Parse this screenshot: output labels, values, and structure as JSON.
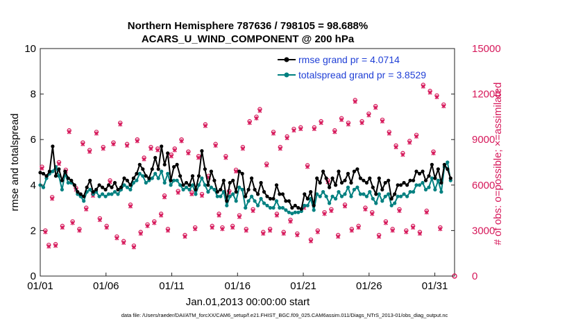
{
  "chart_data": {
    "type": "line",
    "title": "Northern Hemisphere 787636 / 798105 = 98.688%",
    "subtitle": "ACARS_U_WIND_COMPONENT @ 200 hPa",
    "xlabel": "Jan.01,2013 00:00:00 start",
    "ylabel": "rmse and totalspread",
    "y2label": "# of obs: o=possible; ×=assimilated",
    "x_ticks": [
      "01/01",
      "01/06",
      "01/11",
      "01/16",
      "01/21",
      "01/26",
      "01/31"
    ],
    "x_tick_days": [
      0,
      5,
      10,
      15,
      20,
      25,
      30
    ],
    "xlim": [
      0,
      31.5
    ],
    "ylim": [
      0,
      10
    ],
    "y_ticks": [
      "0",
      "2",
      "4",
      "6",
      "8",
      "10"
    ],
    "y_tick_values": [
      0,
      2,
      4,
      6,
      8,
      10
    ],
    "y2lim": [
      0,
      15000
    ],
    "y2_ticks": [
      "0",
      "3000",
      "6000",
      "9000",
      "12000",
      "15000"
    ],
    "y2_tick_values": [
      0,
      3000,
      6000,
      9000,
      12000,
      15000
    ],
    "legend_position": "top-right",
    "footer": "data file: /Users/raeder/DAI/ATM_forcXX/CAM6_setup/f.e21.FHIST_BGC.f09_025.CAM6assim.011/Diags_NTrS_2013-01/obs_diag_output.nc",
    "colors": {
      "rmse": "#000000",
      "spread": "#008080",
      "obs": "#d6185a",
      "right_axis": "#d6185a",
      "legend_text": "#1f3fd6"
    },
    "series": [
      {
        "name": "rmse grand pr = 4.0714",
        "key": "rmse",
        "values": [
          4.55,
          4.5,
          4.4,
          4.6,
          5.7,
          4.4,
          4.7,
          4.2,
          4.6,
          4.3,
          4.2,
          4.0,
          3.7,
          3.6,
          3.5,
          3.9,
          4.2,
          3.7,
          3.8,
          4.0,
          3.9,
          3.8,
          4.0,
          3.9,
          4.1,
          3.8,
          3.9,
          4.3,
          4.2,
          4.0,
          4.3,
          4.5,
          4.9,
          4.7,
          4.4,
          4.3,
          4.7,
          5.2,
          4.7,
          5.7,
          4.9,
          5.4,
          4.2,
          4.8,
          4.9,
          4.4,
          4.0,
          4.1,
          4.0,
          4.4,
          3.8,
          4.4,
          5.5,
          4.7,
          4.0,
          4.6,
          4.2,
          3.7,
          3.8,
          4.2,
          3.3,
          4.1,
          4.2,
          3.7,
          4.6,
          4.5,
          3.5,
          3.8,
          4.3,
          3.8,
          3.6,
          4.1,
          3.7,
          3.5,
          3.4,
          3.4,
          4.0,
          3.6,
          3.6,
          3.3,
          3.3,
          3.0,
          3.1,
          3.0,
          2.95,
          3.6,
          3.4,
          3.7,
          3.1,
          4.3,
          4.1,
          4.6,
          4.3,
          3.9,
          4.3,
          4.0,
          4.6,
          4.1,
          4.2,
          4.5,
          4.1,
          4.6,
          4.7,
          4.3,
          4.2,
          4.1,
          4.3,
          3.9,
          3.6,
          4.3,
          3.8,
          4.1,
          4.2,
          3.4,
          3.6,
          4.0,
          4.0,
          4.1,
          4.0,
          4.2,
          4.2,
          4.6,
          4.5,
          4.6,
          4.2,
          4.4,
          4.9,
          4.3,
          4.7,
          4.1,
          4.9,
          4.7,
          4.3
        ]
      },
      {
        "name": "totalspread grand pr = 3.8529",
        "key": "spread",
        "values": [
          4.0,
          3.9,
          4.3,
          4.5,
          4.6,
          4.8,
          4.4,
          3.8,
          4.5,
          4.1,
          4.1,
          4.0,
          3.6,
          3.5,
          3.3,
          3.7,
          3.8,
          3.6,
          3.7,
          3.5,
          3.6,
          3.5,
          3.6,
          3.6,
          3.7,
          3.6,
          3.8,
          4.0,
          3.9,
          3.8,
          4.1,
          4.2,
          4.5,
          4.4,
          4.1,
          4.2,
          4.3,
          4.5,
          4.3,
          4.6,
          4.1,
          4.5,
          4.0,
          4.2,
          4.2,
          4.0,
          3.8,
          3.9,
          3.8,
          4.0,
          3.6,
          4.0,
          4.3,
          4.0,
          3.7,
          3.9,
          3.8,
          3.5,
          3.5,
          3.7,
          3.1,
          3.5,
          3.6,
          3.3,
          3.9,
          3.8,
          3.0,
          3.3,
          3.5,
          3.3,
          3.1,
          3.4,
          3.2,
          3.1,
          3.0,
          3.0,
          3.3,
          3.0,
          3.0,
          2.9,
          2.8,
          2.75,
          2.8,
          2.8,
          2.85,
          3.1,
          3.1,
          3.4,
          2.9,
          3.6,
          3.5,
          3.7,
          3.5,
          3.2,
          3.5,
          3.4,
          3.7,
          3.5,
          3.6,
          3.9,
          3.5,
          3.8,
          3.9,
          3.6,
          3.6,
          3.5,
          3.7,
          3.4,
          3.2,
          3.6,
          3.3,
          3.5,
          3.6,
          3.1,
          3.2,
          3.5,
          3.5,
          3.6,
          3.5,
          3.7,
          3.7,
          4.0,
          4.0,
          4.1,
          3.8,
          3.9,
          4.3,
          3.8,
          4.2,
          3.7,
          4.8,
          5.0,
          4.2
        ]
      }
    ],
    "obs_counts": {
      "possible": [
        7200,
        3000,
        2050,
        5200,
        2100,
        7500,
        3300,
        7000,
        9600,
        3600,
        5800,
        3100,
        8800,
        4500,
        8300,
        5400,
        9500,
        3800,
        8500,
        3300,
        6300,
        8800,
        2600,
        10100,
        2300,
        8700,
        4700,
        2000,
        9000,
        2900,
        7800,
        3400,
        8500,
        3600,
        8400,
        4100,
        5300,
        3100,
        8000,
        8400,
        5600,
        9000,
        2700,
        8200,
        5500,
        3200,
        7900,
        5400,
        10000,
        6600,
        3300,
        8700,
        4100,
        3200,
        7900,
        5600,
        3300,
        7000,
        4000,
        8500,
        3100,
        10200,
        4400,
        10500,
        11000,
        2900,
        7400,
        3100,
        9500,
        4100,
        8500,
        2900,
        9200,
        3700,
        9700,
        2800,
        9800,
        4600,
        7300,
        2400,
        9800,
        3000,
        10200,
        4200,
        6300,
        4400,
        9600,
        2700,
        10400,
        4700,
        10100,
        3100,
        11600,
        3300,
        10200,
        4500,
        10700,
        4200,
        11200,
        2700,
        10300,
        3600,
        9500,
        3100,
        8600,
        4400,
        8100,
        3000,
        8900,
        3300,
        9300,
        2900,
        12600,
        4300,
        12200,
        8200,
        11900,
        3200,
        11300
      ],
      "assimilated": [
        7100,
        2900,
        1950,
        5100,
        2000,
        7400,
        3200,
        6900,
        9500,
        3500,
        5700,
        3000,
        8700,
        4400,
        8200,
        5300,
        9400,
        3700,
        8400,
        3200,
        6200,
        8700,
        2500,
        10000,
        2200,
        8600,
        4600,
        1900,
        8900,
        2800,
        7700,
        3300,
        8400,
        3500,
        8300,
        4000,
        5200,
        3000,
        7900,
        8300,
        5500,
        8900,
        2600,
        8100,
        5400,
        3100,
        7800,
        5300,
        9900,
        6500,
        3200,
        8600,
        4000,
        3100,
        7800,
        5500,
        3200,
        6900,
        3900,
        8400,
        3000,
        10100,
        4300,
        10400,
        10900,
        2800,
        7300,
        3000,
        9400,
        4000,
        8400,
        2800,
        9100,
        3600,
        9600,
        2700,
        9700,
        4500,
        7200,
        2300,
        9700,
        2900,
        10100,
        4100,
        6200,
        4300,
        9500,
        2600,
        10300,
        4600,
        10000,
        3000,
        11500,
        3200,
        10100,
        4400,
        10600,
        4100,
        11100,
        2600,
        10200,
        3500,
        9400,
        3000,
        8500,
        4300,
        8000,
        2900,
        8800,
        3200,
        9200,
        2800,
        12500,
        4200,
        12100,
        8100,
        11800,
        3100,
        11200
      ],
      "possible_last": 0
    }
  }
}
